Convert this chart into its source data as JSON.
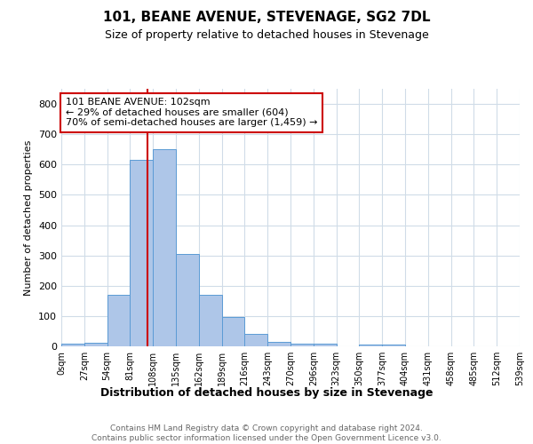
{
  "title": "101, BEANE AVENUE, STEVENAGE, SG2 7DL",
  "subtitle": "Size of property relative to detached houses in Stevenage",
  "xlabel": "Distribution of detached houses by size in Stevenage",
  "ylabel": "Number of detached properties",
  "bin_edges": [
    0,
    27,
    54,
    81,
    108,
    135,
    162,
    189,
    216,
    243,
    270,
    297,
    324,
    351,
    378,
    405,
    432,
    459,
    486,
    513,
    540
  ],
  "bar_heights": [
    8,
    12,
    170,
    615,
    650,
    305,
    170,
    97,
    42,
    15,
    10,
    8,
    0,
    5,
    7,
    0,
    0,
    0,
    0,
    0
  ],
  "bar_color": "#aec6e8",
  "bar_edgecolor": "#5b9bd5",
  "property_size": 102,
  "red_line_color": "#cc0000",
  "annotation_text": "101 BEANE AVENUE: 102sqm\n← 29% of detached houses are smaller (604)\n70% of semi-detached houses are larger (1,459) →",
  "annotation_box_color": "#ffffff",
  "annotation_box_edgecolor": "#cc0000",
  "ylim": [
    0,
    850
  ],
  "xlim": [
    0,
    540
  ],
  "tick_labels": [
    "0sqm",
    "27sqm",
    "54sqm",
    "81sqm",
    "108sqm",
    "135sqm",
    "162sqm",
    "189sqm",
    "216sqm",
    "243sqm",
    "270sqm",
    "296sqm",
    "323sqm",
    "350sqm",
    "377sqm",
    "404sqm",
    "431sqm",
    "458sqm",
    "485sqm",
    "512sqm",
    "539sqm"
  ],
  "footer_text": "Contains HM Land Registry data © Crown copyright and database right 2024.\nContains public sector information licensed under the Open Government Licence v3.0.",
  "background_color": "#ffffff",
  "grid_color": "#d0dce8",
  "yticks": [
    0,
    100,
    200,
    300,
    400,
    500,
    600,
    700,
    800
  ],
  "title_fontsize": 11,
  "subtitle_fontsize": 9,
  "ylabel_fontsize": 8,
  "xlabel_fontsize": 9,
  "tick_fontsize": 7,
  "footer_fontsize": 6.5,
  "annotation_fontsize": 8
}
